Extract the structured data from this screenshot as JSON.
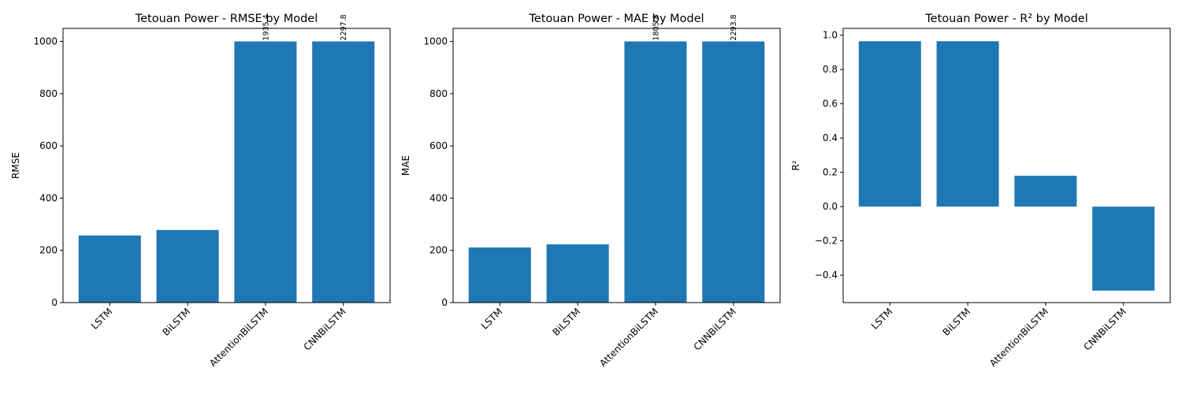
{
  "chart_data": [
    {
      "type": "bar",
      "title": "Tetouan Power - RMSE by Model",
      "xlabel": "",
      "ylabel": "RMSE",
      "categories": [
        "LSTM",
        "BiLSTM",
        "AttentionBiLSTM",
        "CNNBiLSTM"
      ],
      "values": [
        257,
        278,
        1000,
        1000
      ],
      "data_labels": [
        "",
        "",
        "1935.4",
        "2297.8"
      ],
      "ylim": [
        0,
        1050
      ],
      "yticks": [
        0,
        200,
        400,
        600,
        800,
        1000
      ],
      "ytick_labels": [
        "0",
        "200",
        "400",
        "600",
        "800",
        "1000"
      ],
      "color": "#1f77b4",
      "grid": false,
      "legend": "none"
    },
    {
      "type": "bar",
      "title": "Tetouan Power - MAE by Model",
      "xlabel": "",
      "ylabel": "MAE",
      "categories": [
        "LSTM",
        "BiLSTM",
        "AttentionBiLSTM",
        "CNNBiLSTM"
      ],
      "values": [
        211,
        223,
        1000,
        1000
      ],
      "data_labels": [
        "",
        "",
        "1805.8",
        "2293.8"
      ],
      "ylim": [
        0,
        1050
      ],
      "yticks": [
        0,
        200,
        400,
        600,
        800,
        1000
      ],
      "ytick_labels": [
        "0",
        "200",
        "400",
        "600",
        "800",
        "1000"
      ],
      "color": "#1f77b4",
      "grid": false,
      "legend": "none"
    },
    {
      "type": "bar",
      "title": "Tetouan Power - R² by Model",
      "xlabel": "",
      "ylabel": "R²",
      "categories": [
        "LSTM",
        "BiLSTM",
        "AttentionBiLSTM",
        "CNNBiLSTM"
      ],
      "values": [
        0.965,
        0.965,
        0.18,
        -0.49
      ],
      "data_labels": [
        "",
        "",
        "",
        ""
      ],
      "ylim": [
        -0.56,
        1.04
      ],
      "yticks": [
        -0.4,
        -0.2,
        0.0,
        0.2,
        0.4,
        0.6,
        0.8,
        1.0
      ],
      "ytick_labels": [
        "−0.4",
        "−0.2",
        "0.0",
        "0.2",
        "0.4",
        "0.6",
        "0.8",
        "1.0"
      ],
      "color": "#1f77b4",
      "grid": false,
      "legend": "none"
    }
  ]
}
